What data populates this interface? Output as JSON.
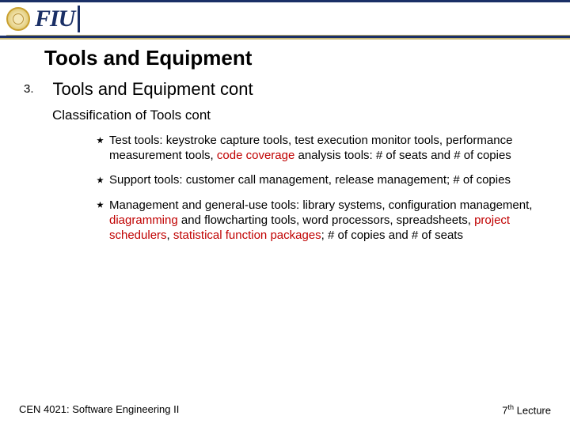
{
  "colors": {
    "navy": "#1a2f66",
    "gold": "#c9b874",
    "highlight": "#c00000",
    "text": "#000000",
    "background": "#ffffff"
  },
  "header": {
    "logo_text": "FIU"
  },
  "slide": {
    "title": "Tools and Equipment",
    "list_number": "3.",
    "section_heading": "Tools and Equipment cont",
    "sub_heading": "Classification of Tools cont",
    "bullets": [
      {
        "pre1": "Test tools: keystroke capture tools, test execution monitor tools, performance measurement tools, ",
        "hl1": "code coverage",
        "post1": " analysis tools: # of seats and # of copies"
      },
      {
        "pre1": "Support tools: customer call management, release management; # of copies"
      },
      {
        "pre1": "Management and general-use tools: library systems, configuration management, ",
        "hl1": "diagramming",
        "mid1": " and flowcharting tools, word processors, spreadsheets, ",
        "hl2": "project schedulers",
        "mid2": ", ",
        "hl3": "statistical function packages",
        "post1": "; # of copies and # of seats"
      }
    ]
  },
  "footer": {
    "left": "CEN 4021: Software Engineering II",
    "right_num": "7",
    "right_sup": "th",
    "right_tail": " Lecture"
  },
  "typography": {
    "title_fontsize": 26,
    "section_fontsize": 22,
    "subheading_fontsize": 17,
    "bullet_fontsize": 15,
    "footer_fontsize": 13
  }
}
